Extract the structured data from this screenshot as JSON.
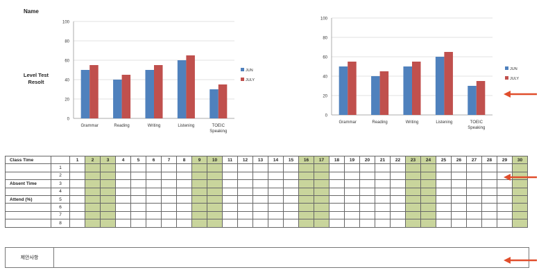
{
  "labels": {
    "name": "Name",
    "level_test_result_line1": "Level Test",
    "level_test_result_line2": "Resolt"
  },
  "colors": {
    "jun": "#4f81bd",
    "july": "#c0504d",
    "highlight": "#c9d59c",
    "arrow": "#e04e2c"
  },
  "chart_data": [
    {
      "type": "bar",
      "categories": [
        "Grammar",
        "Reading",
        "Writing",
        "Listening",
        "TOEIC Speaking"
      ],
      "series": [
        {
          "name": "JUN",
          "values": [
            50,
            40,
            50,
            60,
            30
          ]
        },
        {
          "name": "JULY",
          "values": [
            55,
            45,
            55,
            65,
            35
          ]
        }
      ],
      "ylim": [
        0,
        100
      ],
      "yticks": [
        0,
        20,
        40,
        60,
        80,
        100
      ],
      "legend": "right",
      "grid": true
    },
    {
      "type": "bar",
      "categories": [
        "Grammar",
        "Reading",
        "Writing",
        "Listening",
        "TOEIC Speaking"
      ],
      "series": [
        {
          "name": "JUN",
          "values": [
            50,
            40,
            50,
            60,
            30
          ]
        },
        {
          "name": "JULY",
          "values": [
            55,
            45,
            55,
            65,
            35
          ]
        }
      ],
      "ylim": [
        0,
        100
      ],
      "yticks": [
        0,
        20,
        40,
        60,
        80,
        100
      ],
      "legend": "right",
      "grid": true
    }
  ],
  "attendance": {
    "class_time_label": "Class Time",
    "absent_time_label": "Absent Time",
    "attend_label": "Attend (%)",
    "days": [
      "1",
      "2",
      "3",
      "4",
      "5",
      "6",
      "7",
      "8",
      "9",
      "10",
      "11",
      "12",
      "13",
      "14",
      "15",
      "16",
      "17",
      "18",
      "19",
      "20",
      "21",
      "22",
      "23",
      "24",
      "25",
      "26",
      "27",
      "28",
      "29",
      "30"
    ],
    "highlighted_days": [
      "2",
      "3",
      "9",
      "10",
      "16",
      "17",
      "23",
      "24",
      "30"
    ],
    "rows": [
      "1",
      "2",
      "3",
      "4",
      "5",
      "6",
      "7",
      "8"
    ]
  },
  "notes": {
    "label": "제안사항"
  }
}
